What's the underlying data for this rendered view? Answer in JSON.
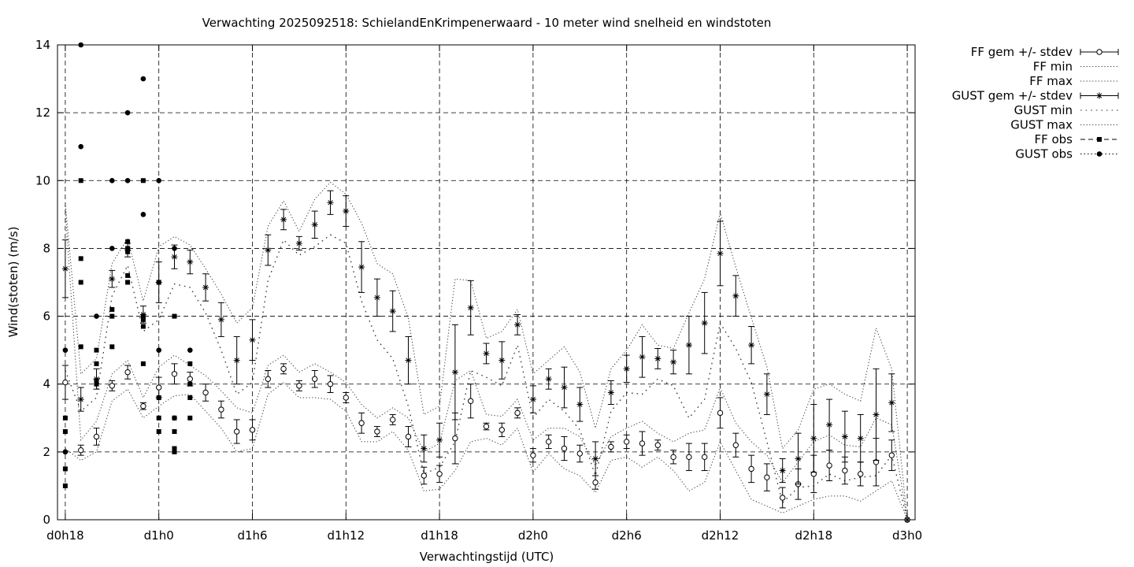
{
  "chart_data": {
    "type": "line",
    "title": "Verwachting 2025092518: SchielandEnKrimpenerwaard - 10 meter wind snelheid en windstoten",
    "xlabel": "Verwachtingstijd (UTC)",
    "ylabel": "Wind(stoten) (m/s)",
    "xlim": [
      17.5,
      72.5
    ],
    "ylim": [
      0,
      14
    ],
    "x_ticks": [
      {
        "value": 18,
        "label": "d0h18"
      },
      {
        "value": 24,
        "label": "d1h0"
      },
      {
        "value": 30,
        "label": "d1h6"
      },
      {
        "value": 36,
        "label": "d1h12"
      },
      {
        "value": 42,
        "label": "d1h18"
      },
      {
        "value": 48,
        "label": "d2h0"
      },
      {
        "value": 54,
        "label": "d2h6"
      },
      {
        "value": 60,
        "label": "d2h12"
      },
      {
        "value": 66,
        "label": "d2h18"
      },
      {
        "value": 72,
        "label": "d3h0"
      }
    ],
    "y_ticks": [
      0,
      2,
      4,
      6,
      8,
      10,
      12,
      14
    ],
    "grid": true,
    "legend_position": "outside-right",
    "legend": [
      {
        "key": "ff_mean",
        "label": "FF gem +/- stdev"
      },
      {
        "key": "ff_min",
        "label": "FF min"
      },
      {
        "key": "ff_max",
        "label": "FF max"
      },
      {
        "key": "gust_mean",
        "label": "GUST gem +/- stdev"
      },
      {
        "key": "gust_min",
        "label": "GUST min"
      },
      {
        "key": "gust_max",
        "label": "GUST max"
      },
      {
        "key": "ff_obs",
        "label": "FF obs"
      },
      {
        "key": "gust_obs",
        "label": "GUST obs"
      }
    ],
    "x": [
      18,
      19,
      20,
      21,
      22,
      23,
      24,
      25,
      26,
      27,
      28,
      29,
      30,
      31,
      32,
      33,
      34,
      35,
      36,
      37,
      38,
      39,
      40,
      41,
      42,
      43,
      44,
      45,
      46,
      47,
      48,
      49,
      50,
      51,
      52,
      53,
      54,
      55,
      56,
      57,
      58,
      59,
      60,
      61,
      62,
      63,
      64,
      65,
      66,
      67,
      68,
      69,
      70,
      71,
      72
    ],
    "series": [
      {
        "key": "ff_mean",
        "style": "open-circle-errorbar",
        "values": [
          4.05,
          2.05,
          2.45,
          3.95,
          4.35,
          3.35,
          3.9,
          4.3,
          4.15,
          3.75,
          3.25,
          2.6,
          2.65,
          4.15,
          4.45,
          3.95,
          4.15,
          4.0,
          3.6,
          2.85,
          2.6,
          2.95,
          2.45,
          1.3,
          1.35,
          2.4,
          3.5,
          2.75,
          2.65,
          3.15,
          1.9,
          2.3,
          2.1,
          1.95,
          1.1,
          2.15,
          2.3,
          2.25,
          2.2,
          1.85,
          1.85,
          1.85,
          3.15,
          2.2,
          1.5,
          1.25,
          0.65,
          1.05,
          1.35,
          1.6,
          1.45,
          1.35,
          1.7,
          1.9,
          0.0
        ],
        "stdev": [
          0.5,
          0.15,
          0.25,
          0.15,
          0.2,
          0.1,
          0.3,
          0.3,
          0.2,
          0.25,
          0.25,
          0.35,
          0.3,
          0.25,
          0.15,
          0.15,
          0.25,
          0.25,
          0.15,
          0.3,
          0.15,
          0.15,
          0.3,
          0.25,
          0.25,
          0.75,
          0.5,
          0.1,
          0.2,
          0.15,
          0.2,
          0.2,
          0.35,
          0.25,
          0.2,
          0.15,
          0.2,
          0.35,
          0.15,
          0.2,
          0.4,
          0.4,
          0.45,
          0.35,
          0.4,
          0.4,
          0.3,
          0.45,
          0.55,
          0.45,
          0.4,
          0.35,
          0.7,
          0.45,
          0.0
        ]
      },
      {
        "key": "gust_mean",
        "style": "star-errorbar",
        "values": [
          7.4,
          3.55,
          4.15,
          7.1,
          7.95,
          6.05,
          7.0,
          7.75,
          7.6,
          6.85,
          5.9,
          4.7,
          5.3,
          7.95,
          8.85,
          8.15,
          8.7,
          9.35,
          9.1,
          7.45,
          6.55,
          6.15,
          4.7,
          2.1,
          2.35,
          4.35,
          6.25,
          4.9,
          4.7,
          5.75,
          3.55,
          4.15,
          3.9,
          3.4,
          1.8,
          3.75,
          4.45,
          4.8,
          4.75,
          4.65,
          5.15,
          5.8,
          7.85,
          6.6,
          5.15,
          3.7,
          1.45,
          1.8,
          2.4,
          2.8,
          2.45,
          2.4,
          3.1,
          3.45,
          0.0
        ],
        "stdev": [
          0.85,
          0.35,
          0.3,
          0.25,
          0.2,
          0.25,
          0.6,
          0.35,
          0.35,
          0.4,
          0.5,
          0.7,
          0.6,
          0.45,
          0.3,
          0.2,
          0.4,
          0.35,
          0.45,
          0.75,
          0.55,
          0.6,
          0.7,
          0.4,
          0.5,
          1.4,
          0.8,
          0.3,
          0.55,
          0.3,
          0.4,
          0.3,
          0.6,
          0.5,
          0.5,
          0.35,
          0.4,
          0.6,
          0.3,
          0.35,
          0.85,
          0.9,
          0.95,
          0.6,
          0.55,
          0.6,
          0.35,
          0.75,
          1.0,
          0.75,
          0.75,
          0.7,
          1.35,
          0.85,
          0.0
        ]
      },
      {
        "key": "ff_min",
        "style": "dotted",
        "values": [
          2.1,
          1.75,
          2.0,
          3.5,
          3.85,
          3.0,
          3.35,
          3.65,
          3.7,
          3.2,
          2.7,
          2.0,
          2.1,
          3.7,
          4.05,
          3.6,
          3.6,
          3.55,
          3.2,
          2.3,
          2.3,
          2.6,
          2.05,
          0.85,
          0.9,
          1.45,
          2.3,
          2.4,
          2.2,
          2.7,
          1.4,
          1.95,
          1.5,
          1.3,
          0.8,
          1.75,
          1.85,
          1.55,
          1.85,
          1.45,
          0.85,
          1.1,
          2.3,
          1.45,
          0.6,
          0.4,
          0.2,
          0.4,
          0.6,
          0.7,
          0.7,
          0.55,
          0.85,
          1.15,
          0.0
        ]
      },
      {
        "key": "ff_max",
        "style": "dotted",
        "values": [
          9.15,
          2.35,
          2.9,
          4.3,
          4.7,
          3.6,
          4.5,
          4.85,
          4.55,
          4.25,
          3.8,
          3.3,
          3.15,
          4.55,
          4.85,
          4.35,
          4.6,
          4.35,
          4.05,
          3.4,
          3.0,
          3.3,
          3.0,
          2.0,
          2.25,
          4.1,
          4.4,
          3.1,
          3.05,
          3.55,
          2.35,
          2.7,
          2.7,
          2.45,
          1.6,
          2.45,
          2.7,
          2.9,
          2.55,
          2.3,
          2.55,
          2.65,
          3.9,
          2.85,
          2.3,
          1.9,
          1.1,
          1.7,
          2.3,
          2.5,
          2.2,
          2.15,
          3.0,
          2.8,
          0.0
        ]
      },
      {
        "key": "gust_min",
        "style": "sparse-dotted",
        "values": [
          4.4,
          3.2,
          3.6,
          6.6,
          7.5,
          5.55,
          5.9,
          6.95,
          6.85,
          6.1,
          5.0,
          3.7,
          4.05,
          7.05,
          8.25,
          7.8,
          8.05,
          8.4,
          8.15,
          6.45,
          5.3,
          4.75,
          3.35,
          1.35,
          1.55,
          2.3,
          4.4,
          4.2,
          3.95,
          5.15,
          3.0,
          3.55,
          3.2,
          2.65,
          1.3,
          3.2,
          3.75,
          3.7,
          4.15,
          3.95,
          3.0,
          3.55,
          5.8,
          5.05,
          4.05,
          2.3,
          0.5,
          0.95,
          1.0,
          1.35,
          1.15,
          1.25,
          1.3,
          1.9,
          0.0
        ]
      },
      {
        "key": "gust_max",
        "style": "dotted",
        "values": [
          9.35,
          4.3,
          4.75,
          7.55,
          8.3,
          6.45,
          8.05,
          8.35,
          8.1,
          7.4,
          6.65,
          5.8,
          6.25,
          8.65,
          9.4,
          8.5,
          9.45,
          9.95,
          9.6,
          8.75,
          7.55,
          7.25,
          5.95,
          3.1,
          3.35,
          7.1,
          7.05,
          5.35,
          5.55,
          6.2,
          4.3,
          4.7,
          5.1,
          4.35,
          2.7,
          4.45,
          5.0,
          5.75,
          5.15,
          5.05,
          6.1,
          7.1,
          9.05,
          7.45,
          5.95,
          4.5,
          2.1,
          2.65,
          3.85,
          4.0,
          3.7,
          3.5,
          5.65,
          4.45,
          0.0
        ]
      }
    ],
    "ff_obs": [
      {
        "x": 18,
        "values": [
          1.0,
          1.5,
          2.6,
          3.0
        ]
      },
      {
        "x": 19,
        "values": [
          5.1,
          7.0,
          7.7,
          10.0
        ]
      },
      {
        "x": 20,
        "values": [
          4.0,
          4.1,
          4.6,
          5.0
        ]
      },
      {
        "x": 21,
        "values": [
          5.1,
          6.0,
          6.2
        ]
      },
      {
        "x": 22,
        "values": [
          7.0,
          7.2,
          7.9,
          8.0,
          8.2
        ]
      },
      {
        "x": 23,
        "values": [
          4.6,
          5.7,
          5.9,
          6.0,
          10.0
        ]
      },
      {
        "x": 24,
        "values": [
          2.6,
          3.0,
          3.6,
          7.0
        ]
      },
      {
        "x": 25,
        "values": [
          2.0,
          2.1,
          2.6,
          3.0,
          6.0
        ]
      },
      {
        "x": 26,
        "values": [
          3.0,
          3.6,
          4.0,
          4.6
        ]
      }
    ],
    "gust_obs": [
      {
        "x": 18,
        "values": [
          2.0,
          5.0
        ]
      },
      {
        "x": 19,
        "values": [
          11.0,
          14.0
        ]
      },
      {
        "x": 20,
        "values": [
          6.0
        ]
      },
      {
        "x": 21,
        "values": [
          8.0,
          10.0
        ]
      },
      {
        "x": 22,
        "values": [
          10.0,
          12.0
        ]
      },
      {
        "x": 23,
        "values": [
          9.0,
          13.0
        ]
      },
      {
        "x": 24,
        "values": [
          5.0,
          10.0
        ]
      },
      {
        "x": 25,
        "values": [
          3.0,
          8.0
        ]
      },
      {
        "x": 26,
        "values": [
          5.0
        ]
      }
    ]
  }
}
